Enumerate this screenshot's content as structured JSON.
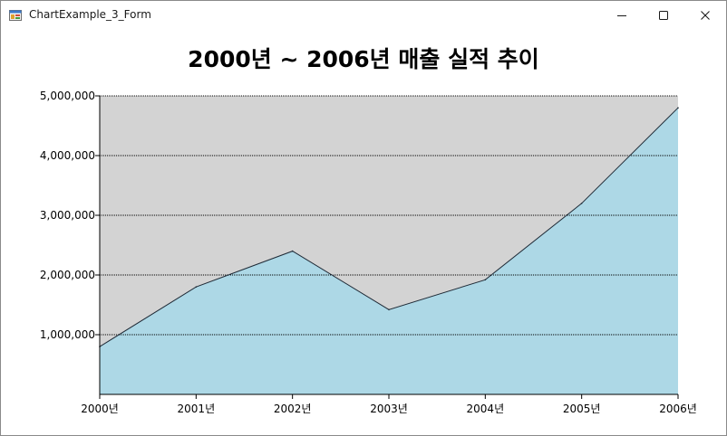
{
  "window": {
    "title": "ChartExample_3_Form"
  },
  "colors": {
    "plot_background": "#d3d3d3",
    "area_fill": "#add8e6",
    "line": "#1f2a36",
    "grid": "#000000"
  },
  "chart_data": {
    "type": "area",
    "title": "2000년 ~ 2006년 매출 실적 추이",
    "xlabel": "",
    "ylabel": "",
    "categories": [
      "2000년",
      "2001년",
      "2002년",
      "2003년",
      "2004년",
      "2005년",
      "2006년"
    ],
    "series": [
      {
        "values": [
          800000,
          1800000,
          2400000,
          1420000,
          1920000,
          3200000,
          4800000
        ]
      }
    ],
    "ylim": [
      0,
      5000000
    ],
    "yticks": [
      1000000,
      2000000,
      3000000,
      4000000,
      5000000
    ],
    "ytick_labels": [
      "1,000,000",
      "2,000,000",
      "3,000,000",
      "4,000,000",
      "5,000,000"
    ],
    "grid": "horizontal dotted",
    "legend": "none"
  }
}
